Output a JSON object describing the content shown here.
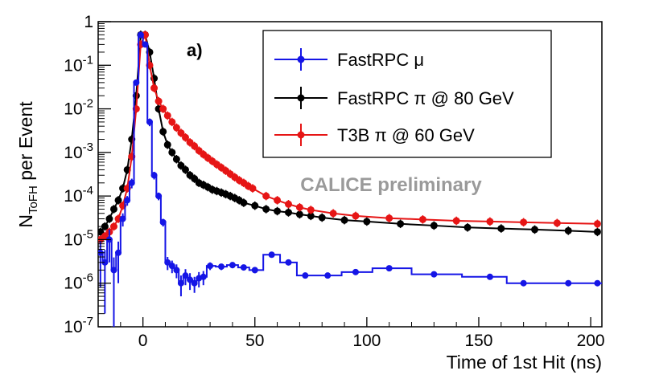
{
  "chart_data": {
    "type": "scatter",
    "panel_label": "a)",
    "annotation": "CALICE preliminary",
    "xlabel": "Time of 1st Hit (ns)",
    "ylabel_main": "N",
    "ylabel_sub": "ToFH",
    "ylabel_tail": " per Event",
    "xlim": [
      -20,
      205
    ],
    "ylim": [
      1e-07,
      1
    ],
    "yscale": "log",
    "x_ticks": [
      0,
      50,
      100,
      150,
      200
    ],
    "x_tick_labels": [
      "0",
      "50",
      "100",
      "150",
      "200"
    ],
    "y_ticks": [
      {
        "value": 1e-07,
        "base": "10",
        "exp": "-7"
      },
      {
        "value": 1e-06,
        "base": "10",
        "exp": "-6"
      },
      {
        "value": 1e-05,
        "base": "10",
        "exp": "-5"
      },
      {
        "value": 0.0001,
        "base": "10",
        "exp": "-4"
      },
      {
        "value": 0.001,
        "base": "10",
        "exp": "-3"
      },
      {
        "value": 0.01,
        "base": "10",
        "exp": "-2"
      },
      {
        "value": 0.1,
        "base": "10",
        "exp": "-1"
      },
      {
        "value": 1,
        "base": "1",
        "exp": ""
      }
    ],
    "legend": [
      {
        "label_prefix": "FastRPC ",
        "greek": "μ",
        "label_suffix": "",
        "color": "#1515e6"
      },
      {
        "label_prefix": "FastRPC ",
        "greek": "π",
        "label_suffix": " @ 80 GeV",
        "color": "#000000"
      },
      {
        "label_prefix": "T3B ",
        "greek": "π",
        "label_suffix": " @ 60 GeV",
        "color": "#e61515"
      }
    ],
    "series": [
      {
        "name": "FastRPC μ",
        "color": "#1515e6",
        "step_hist": true,
        "x": [
          -19,
          -17,
          -15,
          -13,
          -11,
          -9,
          -7,
          -5,
          -3,
          -1,
          1,
          3,
          5,
          7,
          9,
          11,
          13,
          15,
          17,
          19,
          21,
          23,
          25,
          27,
          30,
          35,
          40,
          45,
          50,
          57.5,
          65,
          72.5,
          82.5,
          95,
          110,
          130,
          155,
          170,
          190,
          203
        ],
        "y": [
          5e-06,
          3e-06,
          1e-05,
          2e-06,
          5e-06,
          3e-05,
          8e-05,
          0.0002,
          0.04,
          0.5,
          0.3,
          0.005,
          0.0003,
          0.0001,
          2.5e-05,
          3e-06,
          2.5e-06,
          2e-06,
          1e-06,
          1.5e-06,
          1.2e-06,
          1e-06,
          1.3e-06,
          1.4e-06,
          2.5e-06,
          2.4e-06,
          2.6e-06,
          2.3e-06,
          2e-06,
          4.5e-06,
          3e-06,
          1.5e-06,
          1.5e-06,
          1.8e-06,
          2.2e-06,
          1.6e-06,
          1.4e-06,
          1e-06,
          1e-06,
          1e-06
        ],
        "err_lo": [
          4.2e-06,
          2.8e-06,
          7e-06,
          1.9e-06,
          4e-06,
          1e-05,
          2e-05,
          5e-05,
          0.005,
          0.03,
          0.02,
          0.001,
          6e-05,
          2e-05,
          5e-06,
          1e-06,
          8e-07,
          7e-07,
          5e-07,
          6e-07,
          5e-07,
          4e-07,
          5e-07,
          5e-07,
          5e-07,
          4e-07,
          4e-07,
          3e-07,
          3e-07,
          5e-07,
          3e-07,
          2e-07,
          2e-07,
          2e-07,
          2e-07,
          2e-07,
          1.5e-07,
          1e-07,
          1e-07,
          1e-07
        ],
        "err_hi": [
          4.2e-06,
          2.8e-06,
          7e-06,
          1.9e-06,
          4e-06,
          1e-05,
          2e-05,
          5e-05,
          0.005,
          0.03,
          0.02,
          0.001,
          6e-05,
          2e-05,
          5e-06,
          1e-06,
          8e-07,
          7e-07,
          5e-07,
          6e-07,
          5e-07,
          4e-07,
          5e-07,
          5e-07,
          5e-07,
          4e-07,
          4e-07,
          3e-07,
          3e-07,
          5e-07,
          3e-07,
          2e-07,
          2e-07,
          2e-07,
          2e-07,
          2e-07,
          1.5e-07,
          1e-07,
          1e-07,
          1e-07
        ]
      },
      {
        "name": "FastRPC π @ 80 GeV",
        "color": "#000000",
        "step_hist": false,
        "x": [
          -19,
          -17,
          -15,
          -13,
          -11,
          -9,
          -7,
          -5,
          -3,
          -1,
          1,
          3,
          5,
          7,
          9,
          11,
          13,
          15,
          17,
          19,
          21,
          23,
          25,
          27,
          29,
          31,
          33,
          35,
          37,
          39,
          41,
          43,
          45,
          50,
          55,
          60,
          65,
          70,
          75,
          80,
          90,
          100,
          115,
          130,
          145,
          160,
          175,
          190,
          203
        ],
        "y": [
          1.5e-05,
          2e-05,
          3e-05,
          5e-05,
          8e-05,
          0.00015,
          0.0004,
          0.002,
          0.02,
          0.5,
          0.5,
          0.2,
          0.05,
          0.01,
          0.003,
          0.0015,
          0.001,
          0.0007,
          0.0005,
          0.0004,
          0.0003,
          0.00025,
          0.0002,
          0.00018,
          0.00016,
          0.00014,
          0.00013,
          0.00012,
          0.00011,
          0.0001,
          9e-05,
          8e-05,
          7e-05,
          6e-05,
          5e-05,
          4.5e-05,
          4.2e-05,
          3.8e-05,
          3.5e-05,
          3.2e-05,
          2.8e-05,
          2.6e-05,
          2.3e-05,
          2.1e-05,
          1.9e-05,
          1.8e-05,
          1.7e-05,
          1.6e-05,
          1.5e-05
        ]
      },
      {
        "name": "T3B π @ 60 GeV",
        "color": "#e61515",
        "step_hist": false,
        "x": [
          -19,
          -17,
          -15,
          -13,
          -11,
          -9,
          -7,
          -5,
          -3,
          -1,
          1,
          3,
          5,
          7,
          9,
          11,
          13,
          15,
          17,
          19,
          21,
          23,
          25,
          27,
          29,
          31,
          33,
          35,
          37,
          39,
          41,
          43,
          45,
          47,
          49,
          55,
          60,
          65,
          70,
          75,
          85,
          95,
          110,
          125,
          140,
          155,
          170,
          185,
          203
        ],
        "y": [
          1e-05,
          1.2e-05,
          1.5e-05,
          2e-05,
          3e-05,
          6e-05,
          0.00015,
          0.0008,
          0.01,
          0.3,
          0.5,
          0.1,
          0.03,
          0.015,
          0.01,
          0.007,
          0.005,
          0.0037,
          0.0028,
          0.0022,
          0.0017,
          0.0014,
          0.0011,
          0.0009,
          0.00075,
          0.00063,
          0.00053,
          0.00045,
          0.00038,
          0.00032,
          0.00027,
          0.00023,
          0.0002,
          0.00017,
          0.00015,
          0.0001,
          8e-05,
          6.5e-05,
          5.5e-05,
          4.8e-05,
          4e-05,
          3.5e-05,
          3.1e-05,
          2.9e-05,
          2.7e-05,
          2.6e-05,
          2.5e-05,
          2.4e-05,
          2.3e-05
        ]
      }
    ]
  }
}
